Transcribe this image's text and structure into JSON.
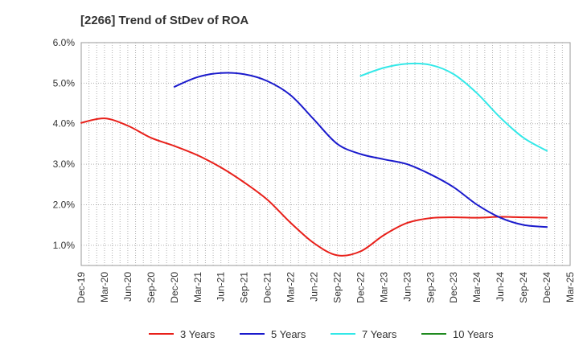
{
  "chart_data": {
    "type": "line",
    "title": "[2266]  Trend of StDev of ROA",
    "xlabel": "",
    "ylabel": "",
    "x_tick_labels": [
      "Dec-19",
      "Mar-20",
      "Jun-20",
      "Sep-20",
      "Dec-20",
      "Mar-21",
      "Jun-21",
      "Sep-21",
      "Dec-21",
      "Mar-22",
      "Jun-22",
      "Sep-22",
      "Dec-22",
      "Mar-23",
      "Jun-23",
      "Sep-23",
      "Dec-23",
      "Mar-24",
      "Jun-24",
      "Sep-24",
      "Dec-24",
      "Mar-25"
    ],
    "y_tick_labels": [
      "1.0%",
      "2.0%",
      "3.0%",
      "4.0%",
      "5.0%",
      "6.0%"
    ],
    "ylim": [
      0.5,
      6.0
    ],
    "grid": true,
    "legend_position": "bottom",
    "series": [
      {
        "name": "3 Years",
        "color": "#e8201a",
        "x": [
          "Dec-19",
          "Mar-20",
          "Jun-20",
          "Sep-20",
          "Dec-20",
          "Mar-21",
          "Jun-21",
          "Sep-21",
          "Dec-21",
          "Mar-22",
          "Jun-22",
          "Sep-22",
          "Dec-22",
          "Mar-23",
          "Jun-23",
          "Sep-23",
          "Dec-23",
          "Mar-24",
          "Jun-24",
          "Sep-24",
          "Dec-24"
        ],
        "values": [
          4.02,
          4.13,
          3.95,
          3.65,
          3.45,
          3.22,
          2.92,
          2.55,
          2.12,
          1.55,
          1.05,
          0.75,
          0.85,
          1.25,
          1.55,
          1.67,
          1.69,
          1.68,
          1.7,
          1.69,
          1.68
        ]
      },
      {
        "name": "5 Years",
        "color": "#1a1acc",
        "x": [
          "Dec-20",
          "Mar-21",
          "Jun-21",
          "Sep-21",
          "Dec-21",
          "Mar-22",
          "Jun-22",
          "Sep-22",
          "Dec-22",
          "Mar-23",
          "Jun-23",
          "Sep-23",
          "Dec-23",
          "Mar-24",
          "Jun-24",
          "Sep-24",
          "Dec-24"
        ],
        "values": [
          4.91,
          5.15,
          5.25,
          5.22,
          5.05,
          4.7,
          4.1,
          3.5,
          3.25,
          3.12,
          3.0,
          2.75,
          2.43,
          2.0,
          1.68,
          1.5,
          1.45
        ]
      },
      {
        "name": "7 Years",
        "color": "#33e8e8",
        "x": [
          "Dec-22",
          "Mar-23",
          "Jun-23",
          "Sep-23",
          "Dec-23",
          "Mar-24",
          "Jun-24",
          "Sep-24",
          "Dec-24"
        ],
        "values": [
          5.18,
          5.38,
          5.48,
          5.45,
          5.22,
          4.75,
          4.15,
          3.65,
          3.33
        ]
      },
      {
        "name": "10 Years",
        "color": "#1f8a1f",
        "x": [],
        "values": []
      }
    ]
  }
}
